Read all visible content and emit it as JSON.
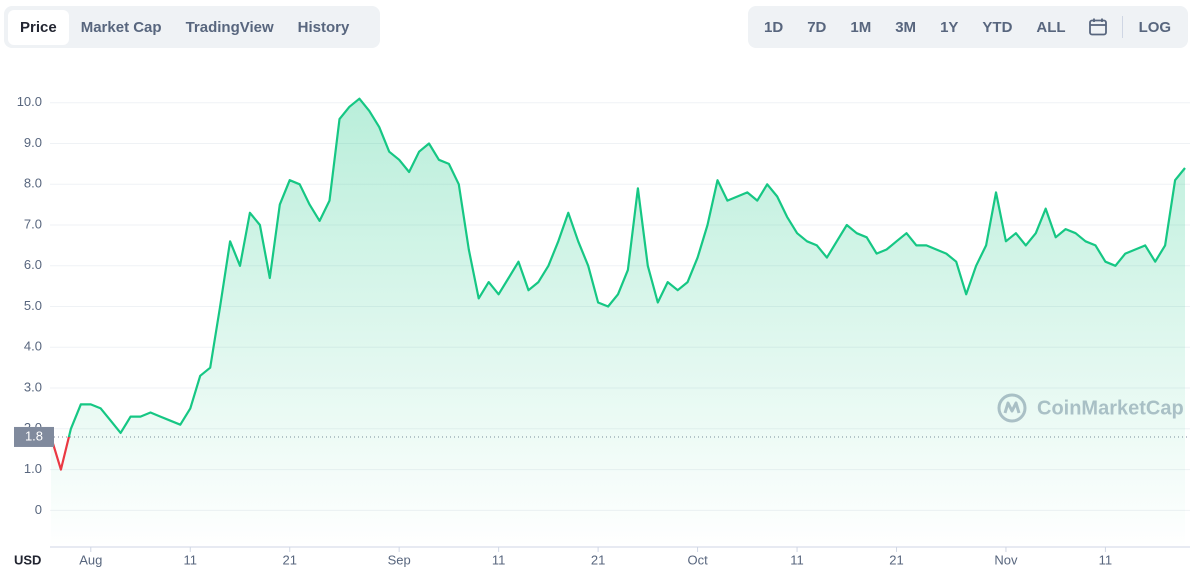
{
  "tabs": [
    "Price",
    "Market Cap",
    "TradingView",
    "History"
  ],
  "ranges": [
    "1D",
    "7D",
    "1M",
    "3M",
    "1Y",
    "YTD",
    "ALL"
  ],
  "log_button": "LOG",
  "watermark": "CoinMarketCap",
  "chart_data": {
    "type": "line",
    "unit_label": "USD",
    "x": [
      "Jul 28",
      "Jul 29",
      "Jul 30",
      "Jul 31",
      "Aug 1",
      "Aug 2",
      "Aug 3",
      "Aug 4",
      "Aug 5",
      "Aug 6",
      "Aug 7",
      "Aug 8",
      "Aug 9",
      "Aug 10",
      "Aug 11",
      "Aug 12",
      "Aug 13",
      "Aug 14",
      "Aug 15",
      "Aug 16",
      "Aug 17",
      "Aug 18",
      "Aug 19",
      "Aug 20",
      "Aug 21",
      "Aug 22",
      "Aug 23",
      "Aug 24",
      "Aug 25",
      "Aug 26",
      "Aug 27",
      "Aug 28",
      "Aug 29",
      "Aug 30",
      "Aug 31",
      "Sep 1",
      "Sep 2",
      "Sep 3",
      "Sep 4",
      "Sep 5",
      "Sep 6",
      "Sep 7",
      "Sep 8",
      "Sep 9",
      "Sep 10",
      "Sep 11",
      "Sep 12",
      "Sep 13",
      "Sep 14",
      "Sep 15",
      "Sep 16",
      "Sep 17",
      "Sep 18",
      "Sep 19",
      "Sep 20",
      "Sep 21",
      "Sep 22",
      "Sep 23",
      "Sep 24",
      "Sep 25",
      "Sep 26",
      "Sep 27",
      "Sep 28",
      "Sep 29",
      "Sep 30",
      "Oct 1",
      "Oct 2",
      "Oct 3",
      "Oct 4",
      "Oct 5",
      "Oct 6",
      "Oct 7",
      "Oct 8",
      "Oct 9",
      "Oct 10",
      "Oct 11",
      "Oct 12",
      "Oct 13",
      "Oct 14",
      "Oct 15",
      "Oct 16",
      "Oct 17",
      "Oct 18",
      "Oct 19",
      "Oct 20",
      "Oct 21",
      "Oct 22",
      "Oct 23",
      "Oct 24",
      "Oct 25",
      "Oct 26",
      "Oct 27",
      "Oct 28",
      "Oct 29",
      "Oct 30",
      "Oct 31",
      "Nov 1",
      "Nov 2",
      "Nov 3",
      "Nov 4",
      "Nov 5",
      "Nov 6",
      "Nov 7",
      "Nov 8",
      "Nov 9",
      "Nov 10",
      "Nov 11",
      "Nov 12",
      "Nov 13",
      "Nov 14",
      "Nov 15",
      "Nov 16",
      "Nov 17",
      "Nov 18",
      "Nov 19"
    ],
    "series": [
      {
        "color": "#16c784",
        "below_color": "#ea3943",
        "values": [
          1.8,
          1.0,
          2.0,
          2.6,
          2.6,
          2.5,
          2.2,
          1.9,
          2.3,
          2.3,
          2.4,
          2.3,
          2.2,
          2.1,
          2.5,
          3.3,
          3.5,
          5.0,
          6.6,
          6.0,
          7.3,
          7.0,
          5.7,
          7.5,
          8.1,
          8.0,
          7.5,
          7.1,
          7.6,
          9.6,
          9.9,
          10.1,
          9.8,
          9.4,
          8.8,
          8.6,
          8.3,
          8.8,
          9.0,
          8.6,
          8.5,
          8.0,
          6.4,
          5.2,
          5.6,
          5.3,
          5.7,
          6.1,
          5.4,
          5.6,
          6.0,
          6.6,
          7.3,
          6.6,
          6.0,
          5.1,
          5.0,
          5.3,
          5.9,
          7.9,
          6.0,
          5.1,
          5.6,
          5.4,
          5.6,
          6.2,
          7.0,
          8.1,
          7.6,
          7.7,
          7.8,
          7.6,
          8.0,
          7.7,
          7.2,
          6.8,
          6.6,
          6.5,
          6.2,
          6.6,
          7.0,
          6.8,
          6.7,
          6.3,
          6.4,
          6.6,
          6.8,
          6.5,
          6.5,
          6.4,
          6.3,
          6.1,
          5.3,
          6.0,
          6.5,
          7.8,
          6.6,
          6.8,
          6.5,
          6.8,
          7.4,
          6.7,
          6.9,
          6.8,
          6.6,
          6.5,
          6.1,
          6.0,
          6.3,
          6.4,
          6.5,
          6.1,
          6.5,
          8.1,
          8.4
        ]
      }
    ],
    "baseline": 1.8,
    "ylim": [
      -0.9,
      11
    ],
    "yticks": [
      0,
      {
        "value": 1,
        "label": "1.0"
      },
      {
        "value": 2,
        "label": "2.0"
      },
      {
        "value": 3,
        "label": "3.0"
      },
      {
        "value": 4,
        "label": "4.0"
      },
      {
        "value": 5,
        "label": "5.0"
      },
      {
        "value": 6,
        "label": "6.0"
      },
      {
        "value": 7,
        "label": "7.0"
      },
      {
        "value": 8,
        "label": "8.0"
      },
      {
        "value": 9,
        "label": "9.0"
      },
      {
        "value": 10,
        "label": "10.0"
      }
    ],
    "xticks": [
      {
        "value": "Aug 1",
        "label": "Aug"
      },
      {
        "value": "Aug 11",
        "label": "11"
      },
      {
        "value": "Aug 21",
        "label": "21"
      },
      {
        "value": "Sep 1",
        "label": "Sep"
      },
      {
        "value": "Sep 11",
        "label": "11"
      },
      {
        "value": "Sep 21",
        "label": "21"
      },
      {
        "value": "Oct 1",
        "label": "Oct"
      },
      {
        "value": "Oct 11",
        "label": "11"
      },
      {
        "value": "Oct 21",
        "label": "21"
      },
      {
        "value": "Nov 1",
        "label": "Nov"
      },
      {
        "value": "Nov 11",
        "label": "11"
      }
    ],
    "grid": true
  }
}
